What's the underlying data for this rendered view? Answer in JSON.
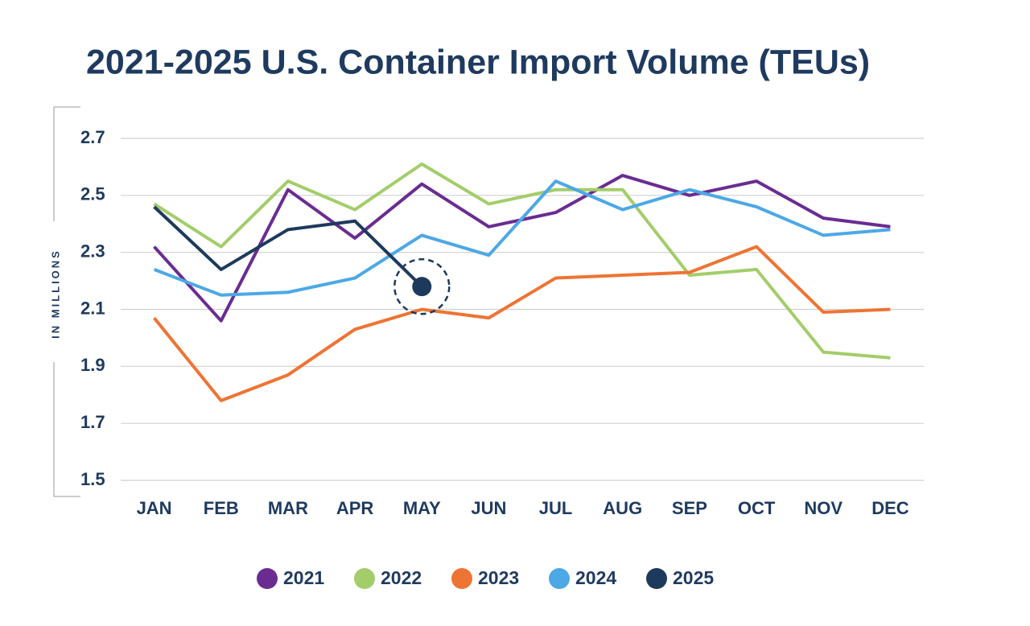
{
  "chart_data": {
    "type": "line",
    "title": "2021-2025 U.S. Container Import Volume (TEUs)",
    "y_label": "IN MILLIONS",
    "categories": [
      "JAN",
      "FEB",
      "MAR",
      "APR",
      "MAY",
      "JUN",
      "JUL",
      "AUG",
      "SEP",
      "OCT",
      "NOV",
      "DEC"
    ],
    "series": [
      {
        "name": "2021",
        "color": "#6a2c91",
        "values": [
          2.32,
          2.06,
          2.52,
          2.35,
          2.54,
          2.39,
          2.44,
          2.57,
          2.5,
          2.55,
          2.42,
          2.39
        ]
      },
      {
        "name": "2022",
        "color": "#a3cd6a",
        "values": [
          2.47,
          2.32,
          2.55,
          2.45,
          2.61,
          2.47,
          2.52,
          2.52,
          2.22,
          2.24,
          1.95,
          1.93
        ]
      },
      {
        "name": "2023",
        "color": "#ee7433",
        "values": [
          2.07,
          1.78,
          1.87,
          2.03,
          2.1,
          2.07,
          2.21,
          2.22,
          2.23,
          2.32,
          2.09,
          2.1
        ]
      },
      {
        "name": "2024",
        "color": "#4da8e6",
        "values": [
          2.24,
          2.15,
          2.16,
          2.21,
          2.36,
          2.29,
          2.55,
          2.45,
          2.52,
          2.46,
          2.36,
          2.38
        ]
      },
      {
        "name": "2025",
        "color": "#1d3a5c",
        "values": [
          2.46,
          2.24,
          2.38,
          2.41,
          2.18,
          null,
          null,
          null,
          null,
          null,
          null,
          null
        ]
      }
    ],
    "ylim": [
      1.5,
      2.7
    ],
    "yticks": [
      1.5,
      1.7,
      1.9,
      2.1,
      2.3,
      2.5,
      2.7
    ],
    "grid": true,
    "legend": "bottom"
  }
}
